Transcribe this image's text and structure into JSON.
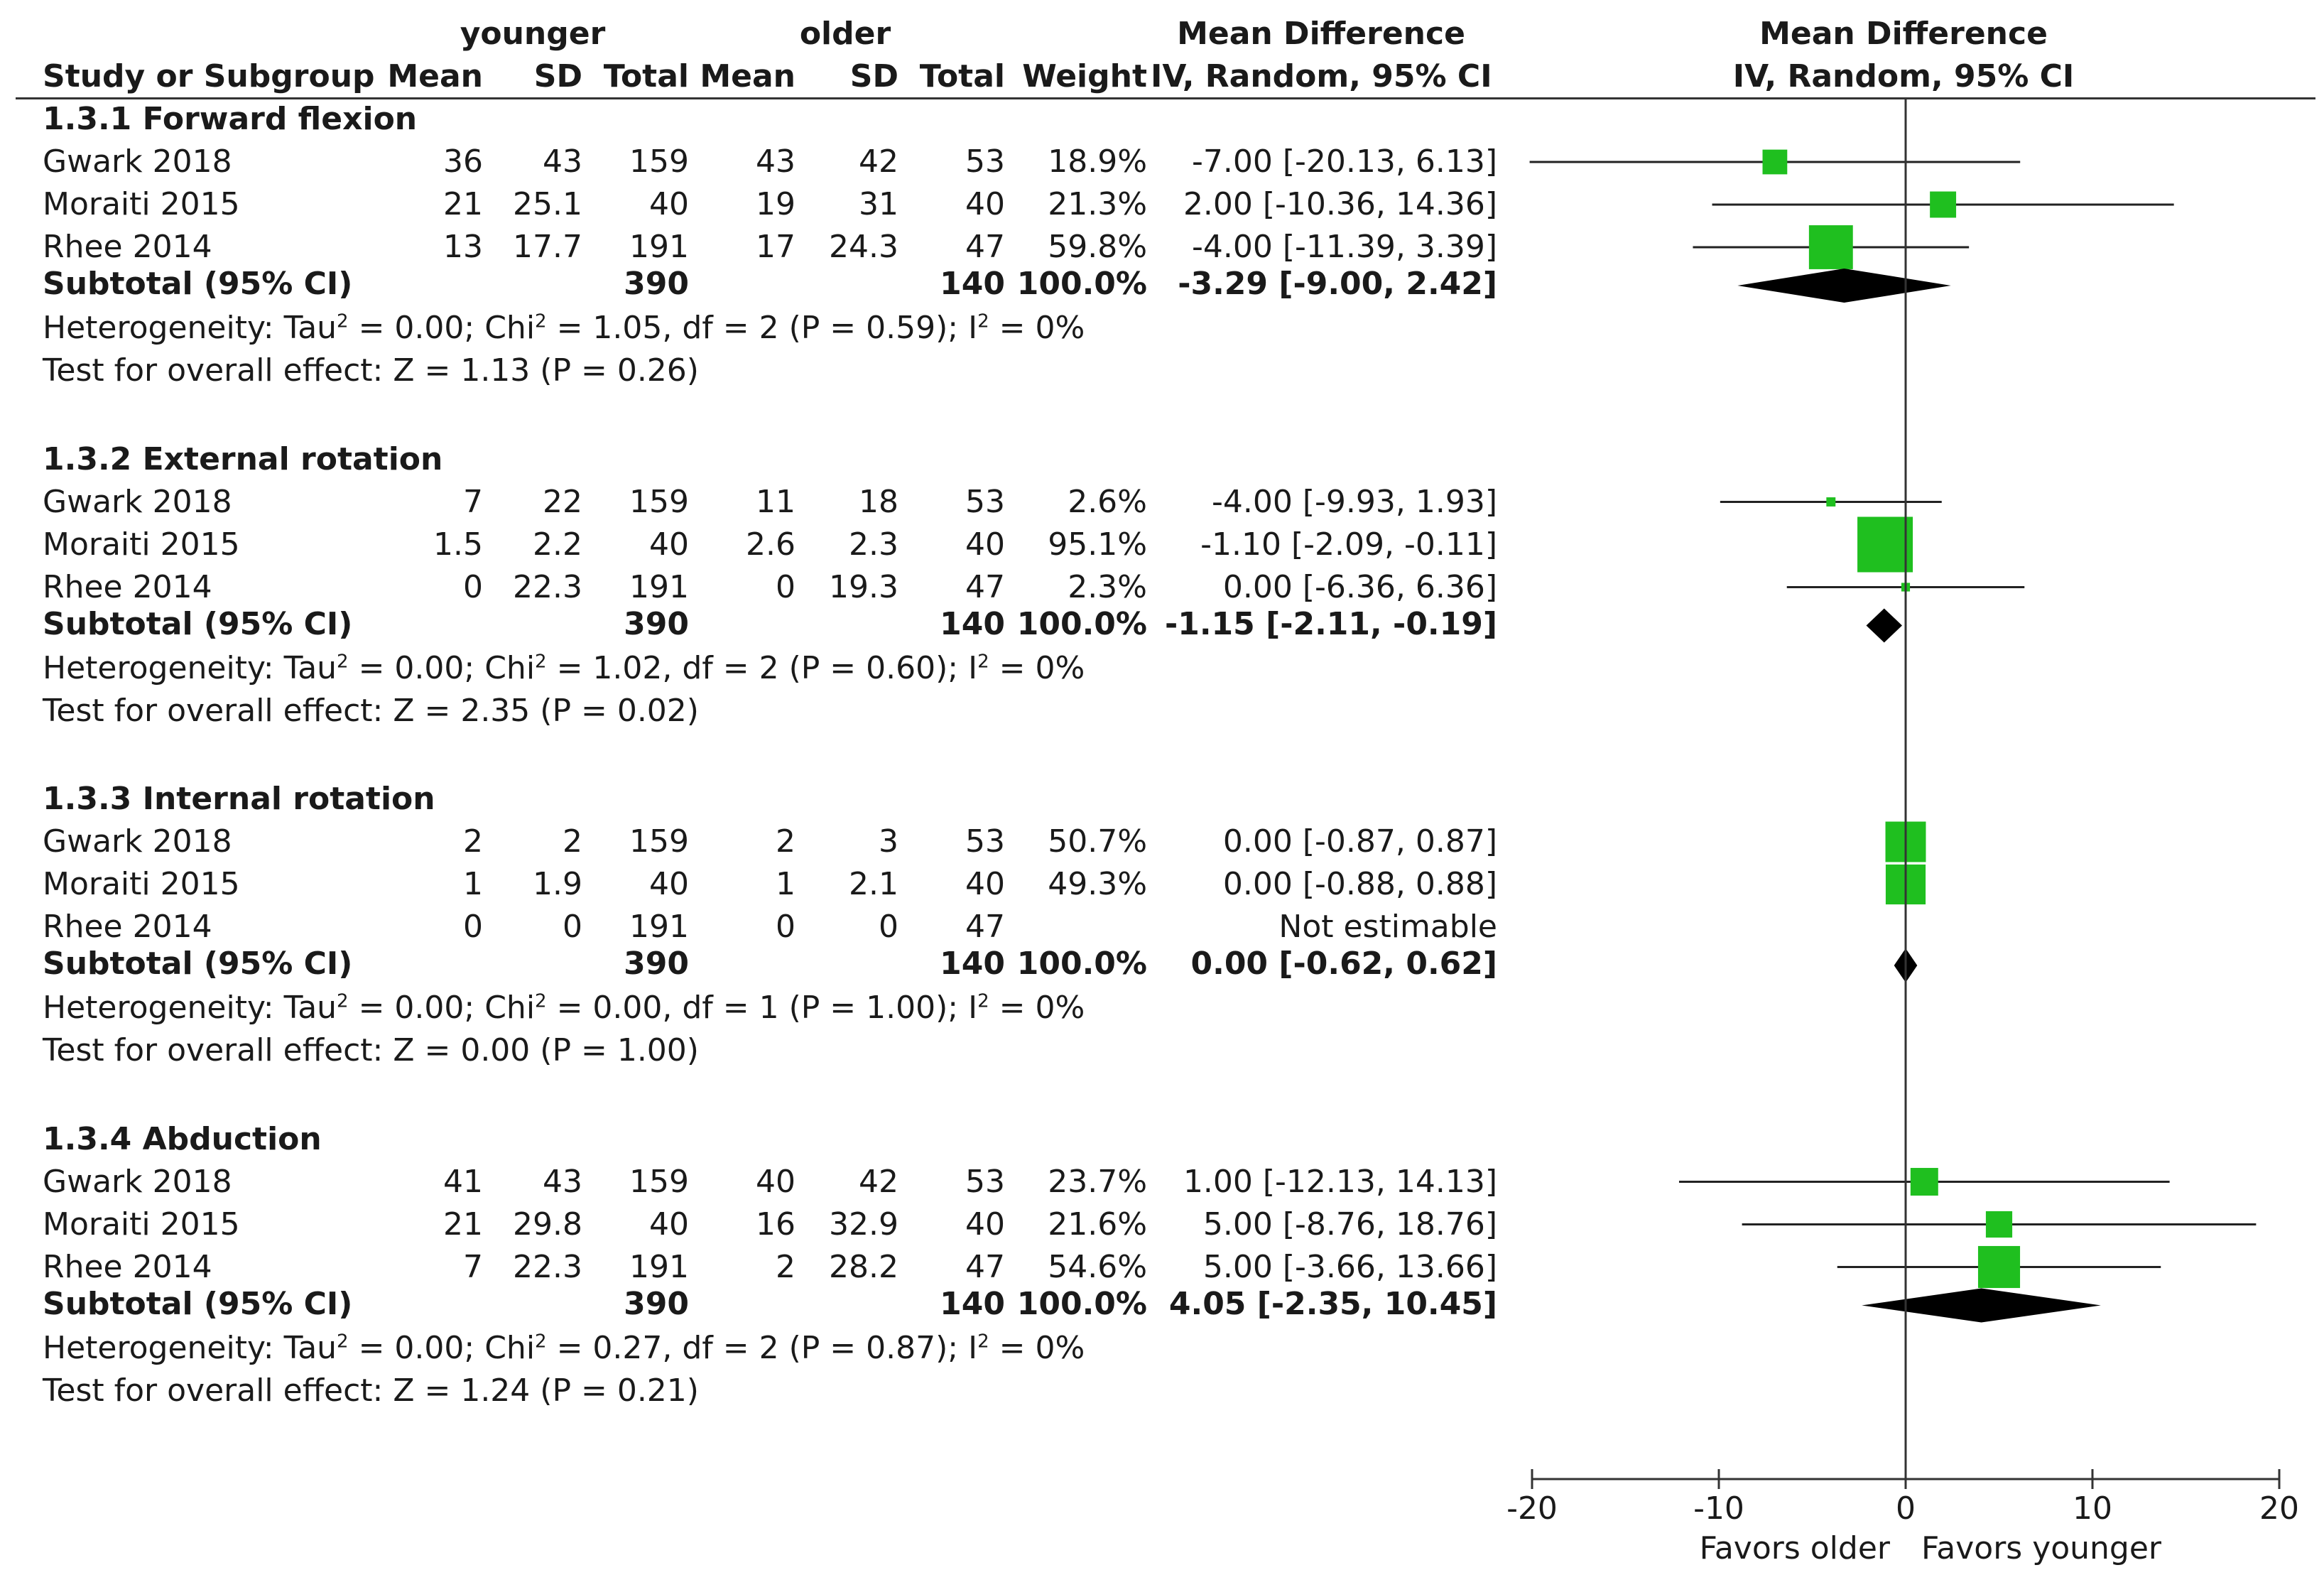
{
  "header": {
    "group1": "younger",
    "group2": "older",
    "study_col": "Study or Subgroup",
    "mean": "Mean",
    "sd": "SD",
    "total": "Total",
    "weight": "Weight",
    "md_title": "Mean Difference",
    "md_method": "IV, Random, 95% CI",
    "plot_title": "Mean Difference",
    "plot_method": "IV, Random, 95% CI"
  },
  "chart_data": {
    "type": "forest",
    "xlim": [
      -20,
      20
    ],
    "ticks": [
      "-20",
      "-10",
      "0",
      "10",
      "20"
    ],
    "favors_left": "Favors older",
    "favors_right": "Favors younger",
    "subgroups": [
      {
        "title": "1.3.1 Forward flexion",
        "studies": [
          {
            "name": "Gwark 2018",
            "y_mean": "36",
            "y_sd": "43",
            "y_total": "159",
            "o_mean": "43",
            "o_sd": "42",
            "o_total": "53",
            "weight": "18.9%",
            "ci_text": "-7.00 [-20.13, 6.13]",
            "md": -7.0,
            "lo": -20.13,
            "hi": 6.13,
            "w": 18.9
          },
          {
            "name": "Moraiti 2015",
            "y_mean": "21",
            "y_sd": "25.1",
            "y_total": "40",
            "o_mean": "19",
            "o_sd": "31",
            "o_total": "40",
            "weight": "21.3%",
            "ci_text": "2.00 [-10.36, 14.36]",
            "md": 2.0,
            "lo": -10.36,
            "hi": 14.36,
            "w": 21.3
          },
          {
            "name": "Rhee 2014",
            "y_mean": "13",
            "y_sd": "17.7",
            "y_total": "191",
            "o_mean": "17",
            "o_sd": "24.3",
            "o_total": "47",
            "weight": "59.8%",
            "ci_text": "-4.00 [-11.39, 3.39]",
            "md": -4.0,
            "lo": -11.39,
            "hi": 3.39,
            "w": 59.8
          }
        ],
        "subtotal": {
          "label": "Subtotal (95% CI)",
          "y_total": "390",
          "o_total": "140",
          "weight": "100.0%",
          "ci_text": "-3.29 [-9.00, 2.42]",
          "md": -3.29,
          "lo": -9.0,
          "hi": 2.42
        },
        "heterogeneity": {
          "prefix": "Heterogeneity: Tau",
          "mid": " = 0.00; Chi",
          "rest": " = 1.05, df = 2 (P = 0.59); I",
          "end": " = 0%"
        },
        "overall": "Test for overall effect: Z = 1.13 (P = 0.26)"
      },
      {
        "title": "1.3.2 External rotation",
        "studies": [
          {
            "name": "Gwark 2018",
            "y_mean": "7",
            "y_sd": "22",
            "y_total": "159",
            "o_mean": "11",
            "o_sd": "18",
            "o_total": "53",
            "weight": "2.6%",
            "ci_text": "-4.00 [-9.93, 1.93]",
            "md": -4.0,
            "lo": -9.93,
            "hi": 1.93,
            "w": 2.6
          },
          {
            "name": "Moraiti 2015",
            "y_mean": "1.5",
            "y_sd": "2.2",
            "y_total": "40",
            "o_mean": "2.6",
            "o_sd": "2.3",
            "o_total": "40",
            "weight": "95.1%",
            "ci_text": "-1.10 [-2.09, -0.11]",
            "md": -1.1,
            "lo": -2.09,
            "hi": -0.11,
            "w": 95.1
          },
          {
            "name": "Rhee 2014",
            "y_mean": "0",
            "y_sd": "22.3",
            "y_total": "191",
            "o_mean": "0",
            "o_sd": "19.3",
            "o_total": "47",
            "weight": "2.3%",
            "ci_text": "0.00 [-6.36, 6.36]",
            "md": 0.0,
            "lo": -6.36,
            "hi": 6.36,
            "w": 2.3
          }
        ],
        "subtotal": {
          "label": "Subtotal (95% CI)",
          "y_total": "390",
          "o_total": "140",
          "weight": "100.0%",
          "ci_text": "-1.15 [-2.11, -0.19]",
          "md": -1.15,
          "lo": -2.11,
          "hi": -0.19
        },
        "heterogeneity": {
          "prefix": "Heterogeneity: Tau",
          "mid": " = 0.00; Chi",
          "rest": " = 1.02, df = 2 (P = 0.60); I",
          "end": " = 0%"
        },
        "overall": "Test for overall effect: Z = 2.35 (P = 0.02)"
      },
      {
        "title": "1.3.3 Internal rotation",
        "studies": [
          {
            "name": "Gwark 2018",
            "y_mean": "2",
            "y_sd": "2",
            "y_total": "159",
            "o_mean": "2",
            "o_sd": "3",
            "o_total": "53",
            "weight": "50.7%",
            "ci_text": "0.00 [-0.87, 0.87]",
            "md": 0.0,
            "lo": -0.87,
            "hi": 0.87,
            "w": 50.7
          },
          {
            "name": "Moraiti 2015",
            "y_mean": "1",
            "y_sd": "1.9",
            "y_total": "40",
            "o_mean": "1",
            "o_sd": "2.1",
            "o_total": "40",
            "weight": "49.3%",
            "ci_text": "0.00 [-0.88, 0.88]",
            "md": 0.0,
            "lo": -0.88,
            "hi": 0.88,
            "w": 49.3
          },
          {
            "name": "Rhee 2014",
            "y_mean": "0",
            "y_sd": "0",
            "y_total": "191",
            "o_mean": "0",
            "o_sd": "0",
            "o_total": "47",
            "weight": "",
            "ci_text": "Not estimable",
            "md": null,
            "lo": null,
            "hi": null,
            "w": 0
          }
        ],
        "subtotal": {
          "label": "Subtotal (95% CI)",
          "y_total": "390",
          "o_total": "140",
          "weight": "100.0%",
          "ci_text": "0.00 [-0.62, 0.62]",
          "md": 0.0,
          "lo": -0.62,
          "hi": 0.62
        },
        "heterogeneity": {
          "prefix": "Heterogeneity: Tau",
          "mid": " = 0.00; Chi",
          "rest": " = 0.00, df = 1 (P = 1.00); I",
          "end": " = 0%"
        },
        "overall": "Test for overall effect: Z = 0.00 (P = 1.00)"
      },
      {
        "title": "1.3.4 Abduction",
        "studies": [
          {
            "name": "Gwark 2018",
            "y_mean": "41",
            "y_sd": "43",
            "y_total": "159",
            "o_mean": "40",
            "o_sd": "42",
            "o_total": "53",
            "weight": "23.7%",
            "ci_text": "1.00 [-12.13, 14.13]",
            "md": 1.0,
            "lo": -12.13,
            "hi": 14.13,
            "w": 23.7
          },
          {
            "name": "Moraiti 2015",
            "y_mean": "21",
            "y_sd": "29.8",
            "y_total": "40",
            "o_mean": "16",
            "o_sd": "32.9",
            "o_total": "40",
            "weight": "21.6%",
            "ci_text": "5.00 [-8.76, 18.76]",
            "md": 5.0,
            "lo": -8.76,
            "hi": 18.76,
            "w": 21.6
          },
          {
            "name": "Rhee 2014",
            "y_mean": "7",
            "y_sd": "22.3",
            "y_total": "191",
            "o_mean": "2",
            "o_sd": "28.2",
            "o_total": "47",
            "weight": "54.6%",
            "ci_text": "5.00 [-3.66, 13.66]",
            "md": 5.0,
            "lo": -3.66,
            "hi": 13.66,
            "w": 54.6
          }
        ],
        "subtotal": {
          "label": "Subtotal (95% CI)",
          "y_total": "390",
          "o_total": "140",
          "weight": "100.0%",
          "ci_text": "4.05 [-2.35, 10.45]",
          "md": 4.05,
          "lo": -2.35,
          "hi": 10.45
        },
        "heterogeneity": {
          "prefix": "Heterogeneity: Tau",
          "mid": " = 0.00; Chi",
          "rest": " = 0.27, df = 2 (P = 0.87); I",
          "end": " = 0%"
        },
        "overall": "Test for overall effect: Z = 1.24 (P = 0.21)"
      }
    ],
    "colors": {
      "study_marker": "#1fbf1f",
      "ci_line": "#222222",
      "diamond": "#000000",
      "axis": "#333333"
    }
  }
}
